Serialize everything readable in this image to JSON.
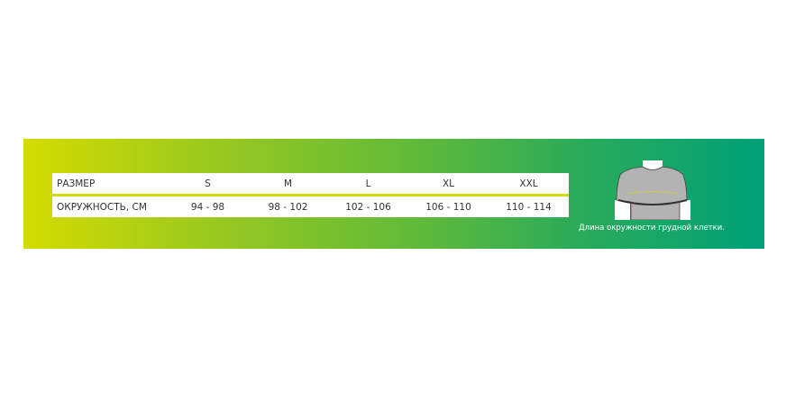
{
  "table": {
    "header": {
      "label": "РАЗМЕР",
      "sizes": [
        "S",
        "M",
        "L",
        "XL",
        "XXL"
      ]
    },
    "row": {
      "label": "ОКРУЖНОСТЬ, СМ",
      "values": [
        "94 - 98",
        "98 - 102",
        "102 - 106",
        "106 - 110",
        "110 - 114"
      ]
    }
  },
  "figure": {
    "icon": "torso-chest-measurement-icon",
    "caption": "Длина окружности грудной клетки."
  },
  "colors": {
    "gradient_start": "#d4dc00",
    "gradient_end": "#00a078",
    "accent_line": "#d6dc00"
  }
}
